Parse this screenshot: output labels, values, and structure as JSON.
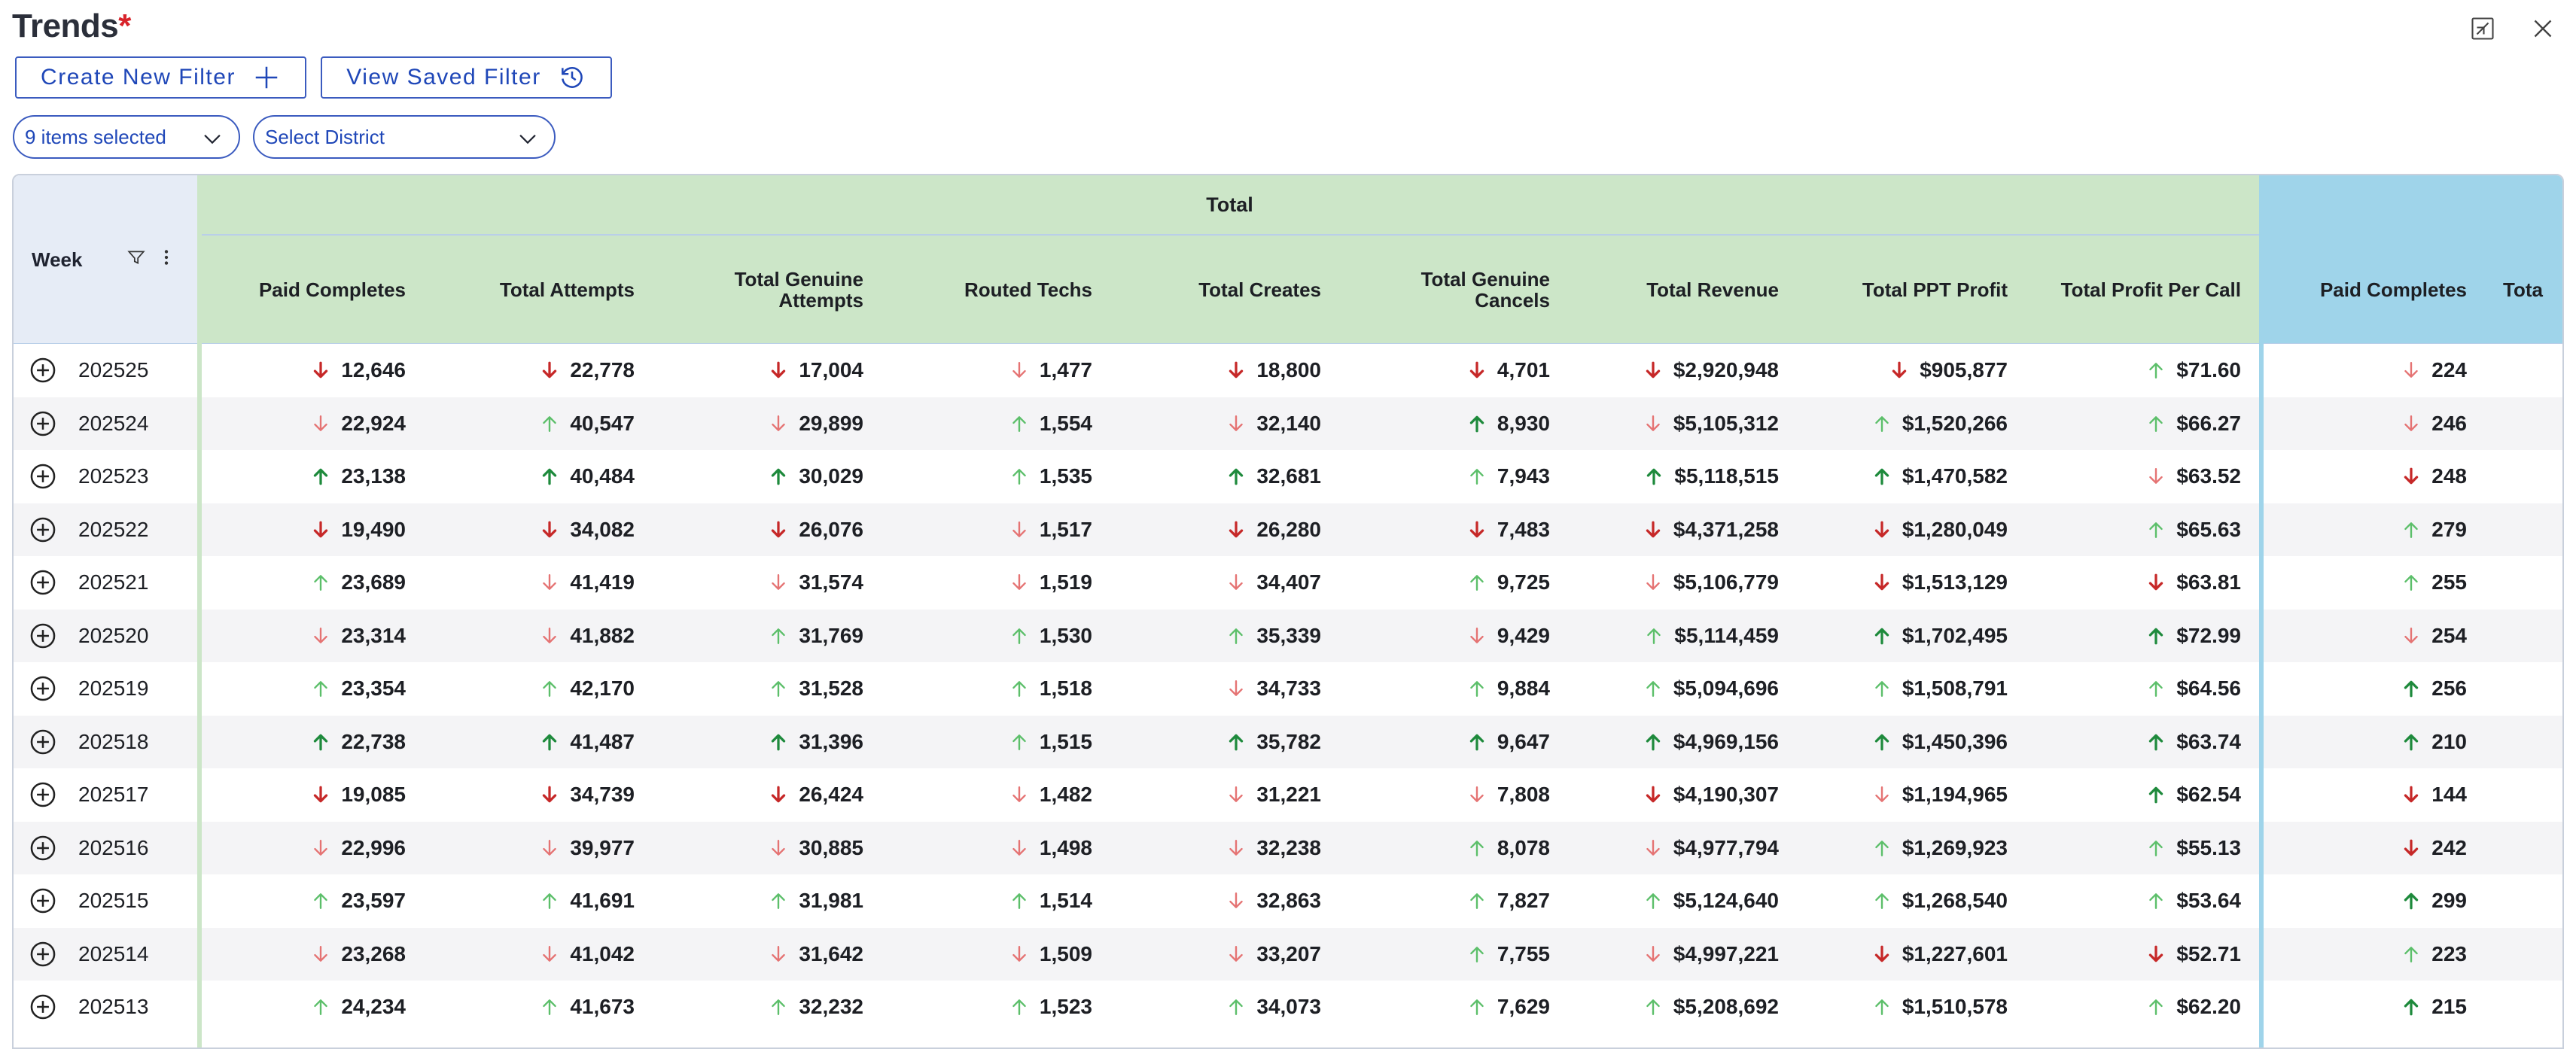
{
  "title": "Trends",
  "title_marker": "*",
  "window": {
    "collapse_icon": "collapse-icon",
    "close_icon": "close-icon"
  },
  "toolbar": {
    "create_filter_label": "Create New Filter",
    "view_saved_filter_label": "View Saved Filter"
  },
  "filters": {
    "items_selected": "9 items selected",
    "district_placeholder": "Select District"
  },
  "colors": {
    "accent": "#3b5bbf",
    "total_group_bg": "#cce6c8",
    "second_group_bg": "#9fd4ea",
    "week_header_bg": "#e6ecf6",
    "up": "#1e8a3c",
    "up_light": "#5cbf6a",
    "down": "#c62828",
    "down_light": "#e57373"
  },
  "grid": {
    "group_total": "Total",
    "week_header": "Week",
    "columns": [
      "Paid Completes",
      "Total Attempts",
      "Total Genuine Attempts",
      "Routed Techs",
      "Total Creates",
      "Total Genuine Cancels",
      "Total Revenue",
      "Total PPT Profit",
      "Total Profit Per Call",
      "Paid Completes",
      "Tota"
    ],
    "rows": [
      {
        "week": "202525",
        "v": [
          "12,646",
          "22,778",
          "17,004",
          "1,477",
          "18,800",
          "4,701",
          "$2,920,948",
          "$905,877",
          "$71.60",
          "224"
        ],
        "d": [
          "D",
          "D",
          "D",
          "d",
          "D",
          "D",
          "D",
          "D",
          "u",
          "d"
        ]
      },
      {
        "week": "202524",
        "v": [
          "22,924",
          "40,547",
          "29,899",
          "1,554",
          "32,140",
          "8,930",
          "$5,105,312",
          "$1,520,266",
          "$66.27",
          "246"
        ],
        "d": [
          "d",
          "u",
          "d",
          "u",
          "d",
          "U",
          "d",
          "u",
          "u",
          "d"
        ]
      },
      {
        "week": "202523",
        "v": [
          "23,138",
          "40,484",
          "30,029",
          "1,535",
          "32,681",
          "7,943",
          "$5,118,515",
          "$1,470,582",
          "$63.52",
          "248"
        ],
        "d": [
          "U",
          "U",
          "U",
          "u",
          "U",
          "u",
          "U",
          "U",
          "d",
          "D"
        ]
      },
      {
        "week": "202522",
        "v": [
          "19,490",
          "34,082",
          "26,076",
          "1,517",
          "26,280",
          "7,483",
          "$4,371,258",
          "$1,280,049",
          "$65.63",
          "279"
        ],
        "d": [
          "D",
          "D",
          "D",
          "d",
          "D",
          "D",
          "D",
          "D",
          "u",
          "u"
        ]
      },
      {
        "week": "202521",
        "v": [
          "23,689",
          "41,419",
          "31,574",
          "1,519",
          "34,407",
          "9,725",
          "$5,106,779",
          "$1,513,129",
          "$63.81",
          "255"
        ],
        "d": [
          "u",
          "d",
          "d",
          "d",
          "d",
          "u",
          "d",
          "D",
          "D",
          "u"
        ]
      },
      {
        "week": "202520",
        "v": [
          "23,314",
          "41,882",
          "31,769",
          "1,530",
          "35,339",
          "9,429",
          "$5,114,459",
          "$1,702,495",
          "$72.99",
          "254"
        ],
        "d": [
          "d",
          "d",
          "u",
          "u",
          "u",
          "d",
          "u",
          "U",
          "U",
          "d"
        ]
      },
      {
        "week": "202519",
        "v": [
          "23,354",
          "42,170",
          "31,528",
          "1,518",
          "34,733",
          "9,884",
          "$5,094,696",
          "$1,508,791",
          "$64.56",
          "256"
        ],
        "d": [
          "u",
          "u",
          "u",
          "u",
          "d",
          "u",
          "u",
          "u",
          "u",
          "U"
        ]
      },
      {
        "week": "202518",
        "v": [
          "22,738",
          "41,487",
          "31,396",
          "1,515",
          "35,782",
          "9,647",
          "$4,969,156",
          "$1,450,396",
          "$63.74",
          "210"
        ],
        "d": [
          "U",
          "U",
          "U",
          "u",
          "U",
          "U",
          "U",
          "U",
          "U",
          "U"
        ]
      },
      {
        "week": "202517",
        "v": [
          "19,085",
          "34,739",
          "26,424",
          "1,482",
          "31,221",
          "7,808",
          "$4,190,307",
          "$1,194,965",
          "$62.54",
          "144"
        ],
        "d": [
          "D",
          "D",
          "D",
          "d",
          "d",
          "d",
          "D",
          "d",
          "U",
          "D"
        ]
      },
      {
        "week": "202516",
        "v": [
          "22,996",
          "39,977",
          "30,885",
          "1,498",
          "32,238",
          "8,078",
          "$4,977,794",
          "$1,269,923",
          "$55.13",
          "242"
        ],
        "d": [
          "d",
          "d",
          "d",
          "d",
          "d",
          "u",
          "d",
          "u",
          "u",
          "D"
        ]
      },
      {
        "week": "202515",
        "v": [
          "23,597",
          "41,691",
          "31,981",
          "1,514",
          "32,863",
          "7,827",
          "$5,124,640",
          "$1,268,540",
          "$53.64",
          "299"
        ],
        "d": [
          "u",
          "u",
          "u",
          "u",
          "d",
          "u",
          "u",
          "u",
          "u",
          "U"
        ]
      },
      {
        "week": "202514",
        "v": [
          "23,268",
          "41,042",
          "31,642",
          "1,509",
          "33,207",
          "7,755",
          "$4,997,221",
          "$1,227,601",
          "$52.71",
          "223"
        ],
        "d": [
          "d",
          "d",
          "d",
          "d",
          "d",
          "u",
          "d",
          "D",
          "D",
          "u"
        ]
      },
      {
        "week": "202513",
        "v": [
          "24,234",
          "41,673",
          "32,232",
          "1,523",
          "34,073",
          "7,629",
          "$5,208,692",
          "$1,510,578",
          "$62.20",
          "215"
        ],
        "d": [
          "u",
          "u",
          "u",
          "u",
          "u",
          "u",
          "u",
          "u",
          "u",
          "U"
        ]
      }
    ]
  }
}
